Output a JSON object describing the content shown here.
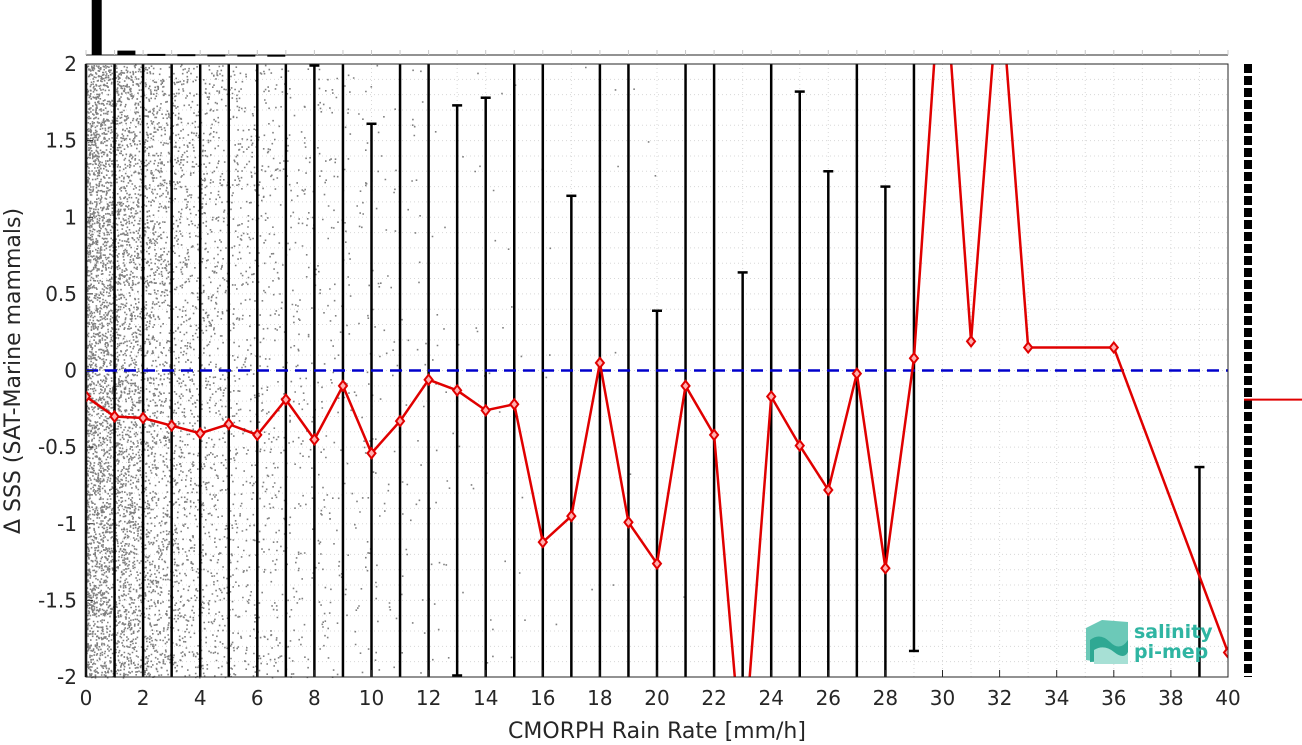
{
  "chart_data": {
    "type": "scatter",
    "xlabel": "CMORPH Rain Rate [mm/h]",
    "ylabel": "Δ SSS (SAT-Marine mammals)",
    "xlim": [
      0,
      40
    ],
    "ylim": [
      -2,
      2
    ],
    "x_ticks": [
      "0",
      "2",
      "4",
      "6",
      "8",
      "10",
      "12",
      "14",
      "16",
      "18",
      "20",
      "22",
      "24",
      "26",
      "28",
      "30",
      "32",
      "34",
      "36",
      "38",
      "40"
    ],
    "y_ticks": [
      "-2",
      "-1.5",
      "-1",
      "-0.5",
      "0",
      "0.5",
      "1",
      "1.5",
      "2"
    ],
    "grid": true,
    "reference_line": {
      "y": 0,
      "style": "dashed",
      "color": "#0000cc"
    },
    "scatter_color": "#808080",
    "mean_series": {
      "color": "#e00000",
      "marker": "diamond",
      "points": [
        [
          0,
          -0.17
        ],
        [
          1,
          -0.3
        ],
        [
          2,
          -0.31
        ],
        [
          3,
          -0.36
        ],
        [
          4,
          -0.41
        ],
        [
          5,
          -0.35
        ],
        [
          6,
          -0.42
        ],
        [
          7,
          -0.19
        ],
        [
          8,
          -0.45
        ],
        [
          9,
          -0.1
        ],
        [
          10,
          -0.54
        ],
        [
          11,
          -0.33
        ],
        [
          12,
          -0.06
        ],
        [
          13,
          -0.13
        ],
        [
          14,
          -0.26
        ],
        [
          15,
          -0.22
        ],
        [
          16,
          -1.12
        ],
        [
          17,
          -0.95
        ],
        [
          18,
          0.05
        ],
        [
          19,
          -0.99
        ],
        [
          20,
          -1.26
        ],
        [
          21,
          -0.1
        ],
        [
          22,
          -0.42
        ],
        [
          23,
          -2.6
        ],
        [
          24,
          -0.17
        ],
        [
          25,
          -0.49
        ],
        [
          26,
          -0.78
        ],
        [
          27,
          -0.02
        ],
        [
          28,
          -1.29
        ],
        [
          29,
          0.08
        ],
        [
          30,
          2.8
        ],
        [
          31,
          0.19
        ],
        [
          32,
          2.6
        ],
        [
          33,
          0.15
        ],
        [
          36,
          0.15
        ],
        [
          40,
          -1.84
        ]
      ]
    },
    "error_bars": [
      [
        0,
        -2,
        2
      ],
      [
        1,
        -2,
        2
      ],
      [
        2,
        -2,
        2
      ],
      [
        3,
        -2,
        2
      ],
      [
        4,
        -2,
        2
      ],
      [
        5,
        -2,
        2
      ],
      [
        6,
        -2,
        2
      ],
      [
        7,
        -2,
        2
      ],
      [
        8,
        -2,
        1.99
      ],
      [
        9,
        -2,
        2
      ],
      [
        10,
        -2,
        1.61
      ],
      [
        11,
        -2,
        2
      ],
      [
        12,
        -2,
        2
      ],
      [
        13,
        -1.99,
        1.73
      ],
      [
        14,
        -2,
        1.78
      ],
      [
        15,
        -2,
        2
      ],
      [
        16,
        -2,
        2
      ],
      [
        17,
        -2,
        1.14
      ],
      [
        18,
        -2,
        2
      ],
      [
        19,
        -2,
        2
      ],
      [
        20,
        -2,
        0.39
      ],
      [
        21,
        -2,
        2
      ],
      [
        22,
        -2,
        2
      ],
      [
        23,
        -2,
        0.64
      ],
      [
        24,
        -2,
        2
      ],
      [
        25,
        -2,
        1.82
      ],
      [
        26,
        -2,
        1.3
      ],
      [
        27,
        -2,
        2
      ],
      [
        28,
        -2,
        1.2
      ],
      [
        29,
        -1.83,
        2
      ],
      [
        39,
        -2,
        -0.63
      ]
    ],
    "top_histogram_counts": [
      100,
      8,
      2,
      1.5,
      1,
      0.8,
      0.6
    ],
    "side_mean_marker": -0.19
  },
  "logo": {
    "line1": "salinity",
    "line2": "pi-mep"
  }
}
